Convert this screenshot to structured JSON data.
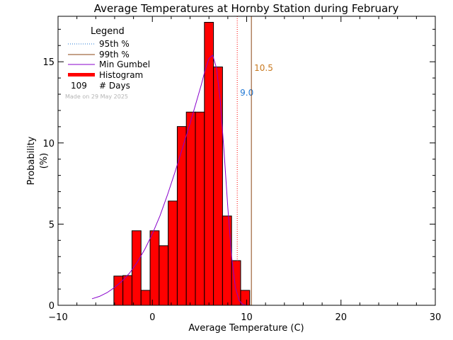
{
  "chart_data": {
    "type": "bar",
    "title": "Average Temperatures at Hornby Station during February",
    "xlabel": "Average Temperature (C)",
    "ylabel": "Probability",
    "ylabel_unit": "(%)",
    "xlim": [
      -10,
      30
    ],
    "ylim": [
      0,
      17.8
    ],
    "x_ticks": [
      -10,
      0,
      10,
      20,
      30
    ],
    "y_ticks": [
      0,
      5,
      10,
      15
    ],
    "grid": false,
    "legend": {
      "placement": "top-left",
      "title": "Legend",
      "entries": [
        {
          "label": "95th %",
          "style": "dotted",
          "color": "#1f77d4"
        },
        {
          "label": "99th %",
          "style": "solid",
          "color": "#8b4513"
        },
        {
          "label": "Min Gumbel",
          "style": "solid",
          "color": "#8800cc"
        },
        {
          "label": "Histogram",
          "style": "bar",
          "color": "#ff0000"
        }
      ],
      "days_count": "109",
      "days_label": "# Days",
      "made_on": "Made on 29 May 2025"
    },
    "histogram": {
      "bin_width": 0.96,
      "bin_starts": [
        -4.08,
        -3.12,
        -2.16,
        -1.2,
        -0.24,
        0.72,
        1.68,
        2.64,
        3.6,
        4.56,
        5.52,
        6.48,
        7.44,
        8.4,
        9.36,
        10.32
      ],
      "values": [
        1.8,
        1.83,
        4.59,
        0.92,
        4.59,
        3.67,
        6.42,
        11.01,
        11.9,
        11.9,
        17.43,
        14.68,
        5.5,
        2.75,
        0.92,
        0.0
      ],
      "color": "#ff0000"
    },
    "gumbel": {
      "name": "Min Gumbel",
      "color": "#8800cc",
      "x": [
        -6.4,
        -5.6,
        -4.8,
        -4,
        -3.2,
        -2.4,
        -1.6,
        -0.8,
        0,
        0.8,
        1.6,
        2.4,
        3.2,
        4,
        4.8,
        5.2,
        5.6,
        6,
        6.4,
        6.8,
        7.2,
        7.6,
        8,
        8.4,
        8.8,
        9.2,
        9.6,
        10
      ],
      "y": [
        0.4,
        0.55,
        0.78,
        1.1,
        1.5,
        2.0,
        2.65,
        3.45,
        4.4,
        5.5,
        6.8,
        8.2,
        9.7,
        11.2,
        12.8,
        13.6,
        14.5,
        15.2,
        15.4,
        14.6,
        12.6,
        9.5,
        6.0,
        3.0,
        1.1,
        0.3,
        0.05,
        0.0
      ]
    },
    "percentiles": [
      {
        "name": "95th %",
        "value": 9.0,
        "label": "9.0",
        "color": "#1f77d4",
        "line_color": "#ff0000",
        "style": "dotted"
      },
      {
        "name": "99th %",
        "value": 10.5,
        "label": "10.5",
        "color": "#c8781e",
        "line_color": "#8b4513",
        "style": "solid"
      }
    ]
  }
}
